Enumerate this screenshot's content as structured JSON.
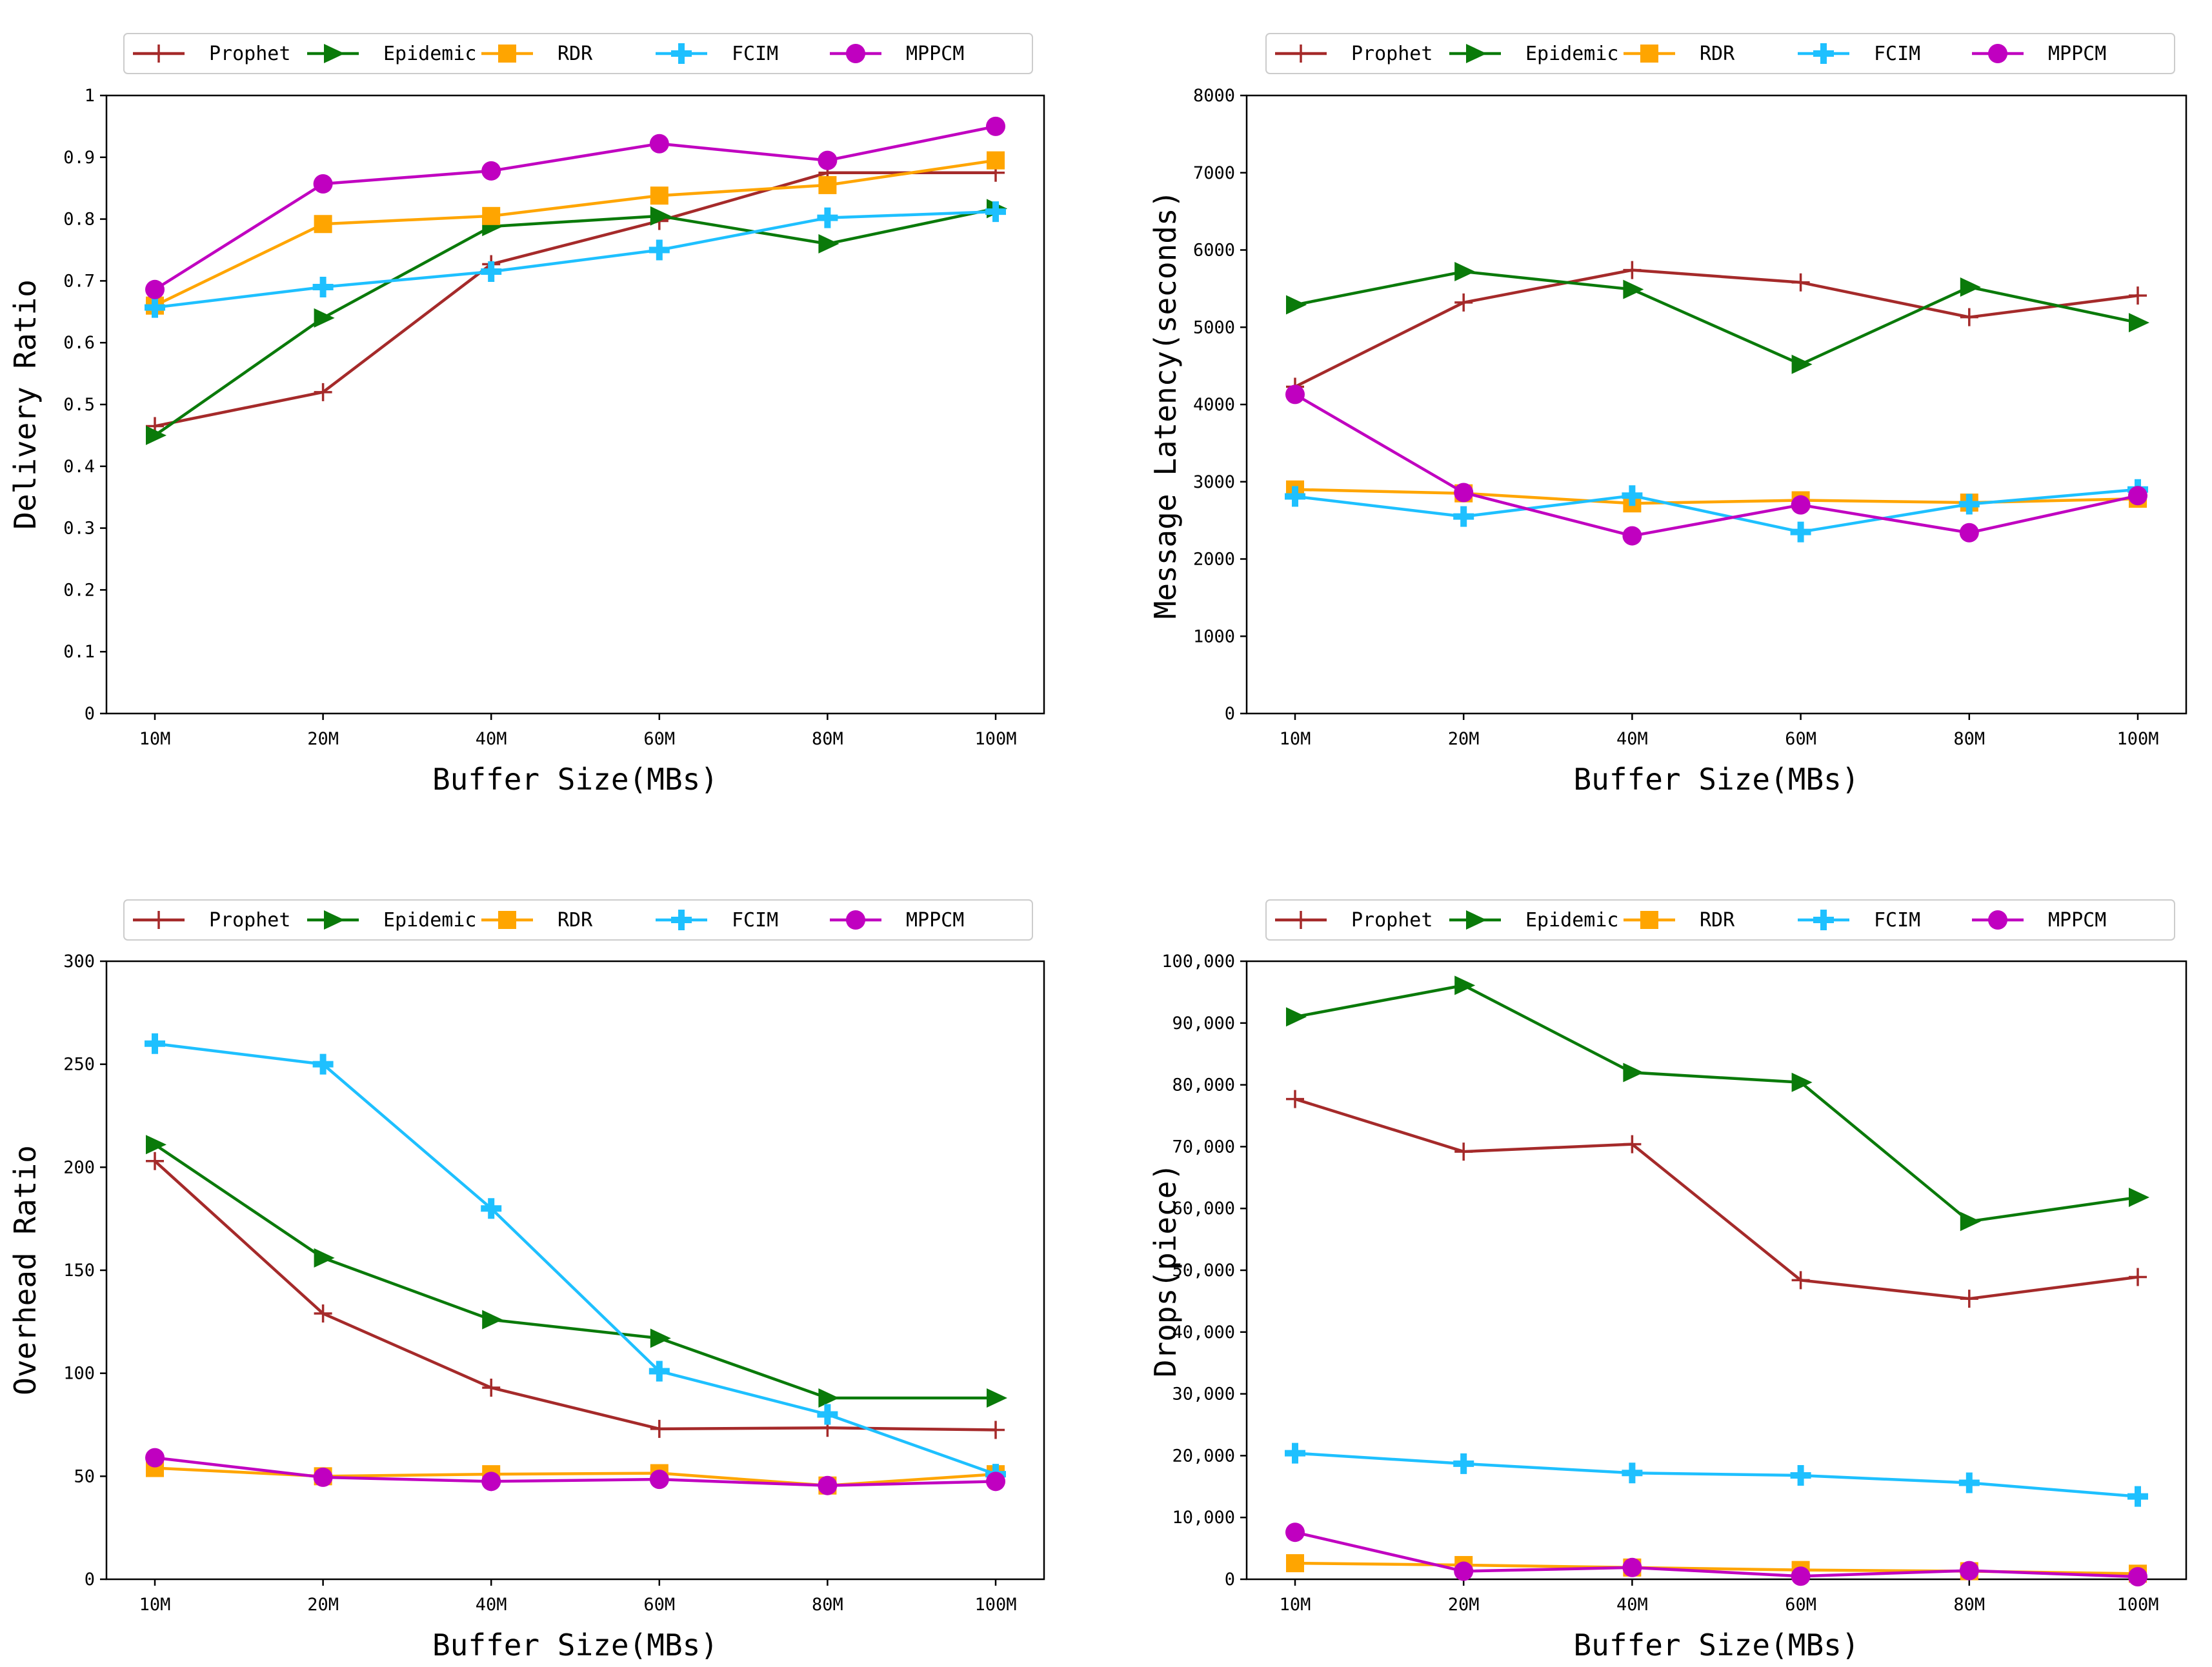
{
  "legend_entries": [
    "Prophet",
    "Epidemic",
    "RDR",
    "FCIM",
    "MPPCM"
  ],
  "series_styles": [
    {
      "name": "Prophet",
      "color": "#a52a2a",
      "marker": "plus"
    },
    {
      "name": "Epidemic",
      "color": "#0a7a0a",
      "marker": "triangle-right"
    },
    {
      "name": "RDR",
      "color": "#ffa500",
      "marker": "square"
    },
    {
      "name": "FCIM",
      "color": "#1ec0ff",
      "marker": "thick-plus"
    },
    {
      "name": "MPPCM",
      "color": "#c000c0",
      "marker": "circle"
    }
  ],
  "chart_data": [
    {
      "type": "line",
      "title": "",
      "xlabel": "Buffer Size(MBs)",
      "ylabel": "Delivery Ratio",
      "categories": [
        "10M",
        "20M",
        "40M",
        "60M",
        "80M",
        "100M"
      ],
      "ylim": [
        0,
        1
      ],
      "yticks": [
        0,
        0.1,
        0.2,
        0.3,
        0.4,
        0.5,
        0.6,
        0.7,
        0.8,
        0.9,
        1
      ],
      "ytick_labels": [
        "0",
        "0.1",
        "0.2",
        "0.3",
        "0.4",
        "0.5",
        "0.6",
        "0.7",
        "0.8",
        "0.9",
        "1"
      ],
      "legend": "top",
      "series": [
        {
          "name": "Prophet",
          "values": [
            0.465,
            0.52,
            0.727,
            0.797,
            0.875,
            0.875
          ]
        },
        {
          "name": "Epidemic",
          "values": [
            0.45,
            0.64,
            0.788,
            0.805,
            0.76,
            0.817
          ]
        },
        {
          "name": "RDR",
          "values": [
            0.66,
            0.792,
            0.805,
            0.838,
            0.855,
            0.895
          ]
        },
        {
          "name": "FCIM",
          "values": [
            0.657,
            0.69,
            0.715,
            0.75,
            0.802,
            0.812
          ]
        },
        {
          "name": "MPPCM",
          "values": [
            0.686,
            0.857,
            0.878,
            0.922,
            0.895,
            0.95
          ]
        }
      ]
    },
    {
      "type": "line",
      "title": "",
      "xlabel": "Buffer Size(MBs)",
      "ylabel": "Message Latency(seconds)",
      "categories": [
        "10M",
        "20M",
        "40M",
        "60M",
        "80M",
        "100M"
      ],
      "ylim": [
        0,
        8000
      ],
      "yticks": [
        0,
        1000,
        2000,
        3000,
        4000,
        5000,
        6000,
        7000,
        8000
      ],
      "ytick_labels": [
        "0",
        "1000",
        "2000",
        "3000",
        "4000",
        "5000",
        "6000",
        "7000",
        "8000"
      ],
      "legend": "top",
      "series": [
        {
          "name": "Prophet",
          "values": [
            4230,
            5320,
            5740,
            5580,
            5130,
            5410
          ]
        },
        {
          "name": "Epidemic",
          "values": [
            5290,
            5720,
            5490,
            4520,
            5520,
            5060
          ]
        },
        {
          "name": "RDR",
          "values": [
            2900,
            2850,
            2720,
            2760,
            2730,
            2780
          ]
        },
        {
          "name": "FCIM",
          "values": [
            2810,
            2550,
            2820,
            2350,
            2710,
            2900
          ]
        },
        {
          "name": "MPPCM",
          "values": [
            4130,
            2860,
            2300,
            2700,
            2340,
            2820
          ]
        }
      ]
    },
    {
      "type": "line",
      "title": "",
      "xlabel": "Buffer Size(MBs)",
      "ylabel": "Overhead Ratio",
      "categories": [
        "10M",
        "20M",
        "40M",
        "60M",
        "80M",
        "100M"
      ],
      "ylim": [
        0,
        300
      ],
      "yticks": [
        0,
        50,
        100,
        150,
        200,
        250,
        300
      ],
      "ytick_labels": [
        "0",
        "50",
        "100",
        "150",
        "200",
        "250",
        "300"
      ],
      "legend": "top",
      "series": [
        {
          "name": "Prophet",
          "values": [
            203,
            129,
            93,
            73,
            73.5,
            72.5
          ]
        },
        {
          "name": "Epidemic",
          "values": [
            211,
            156,
            126,
            117,
            88,
            88
          ]
        },
        {
          "name": "RDR",
          "values": [
            54,
            50,
            51,
            51.5,
            45.5,
            51
          ]
        },
        {
          "name": "FCIM",
          "values": [
            260,
            250,
            180,
            101,
            80,
            51
          ]
        },
        {
          "name": "MPPCM",
          "values": [
            59,
            49.5,
            47.5,
            48.5,
            45.5,
            47.5
          ]
        }
      ]
    },
    {
      "type": "line",
      "title": "",
      "xlabel": "Buffer Size(MBs)",
      "ylabel": "Drops(piece)",
      "categories": [
        "10M",
        "20M",
        "40M",
        "60M",
        "80M",
        "100M"
      ],
      "ylim": [
        0,
        100000
      ],
      "yticks": [
        0,
        10000,
        20000,
        30000,
        40000,
        50000,
        60000,
        70000,
        80000,
        90000,
        100000
      ],
      "ytick_labels": [
        "0",
        "10,000",
        "20,000",
        "30,000",
        "40,000",
        "50,000",
        "60,000",
        "70,000",
        "80,000",
        "90,000",
        "100,000"
      ],
      "legend": "top",
      "series": [
        {
          "name": "Prophet",
          "values": [
            77700,
            69200,
            70400,
            48400,
            45400,
            48900
          ]
        },
        {
          "name": "Epidemic",
          "values": [
            91000,
            96100,
            82000,
            80400,
            57900,
            61800
          ]
        },
        {
          "name": "RDR",
          "values": [
            2600,
            2300,
            1900,
            1500,
            1300,
            900
          ]
        },
        {
          "name": "FCIM",
          "values": [
            20400,
            18700,
            17200,
            16800,
            15600,
            13400
          ]
        },
        {
          "name": "MPPCM",
          "values": [
            7600,
            1300,
            1900,
            500,
            1400,
            400
          ]
        }
      ]
    }
  ]
}
